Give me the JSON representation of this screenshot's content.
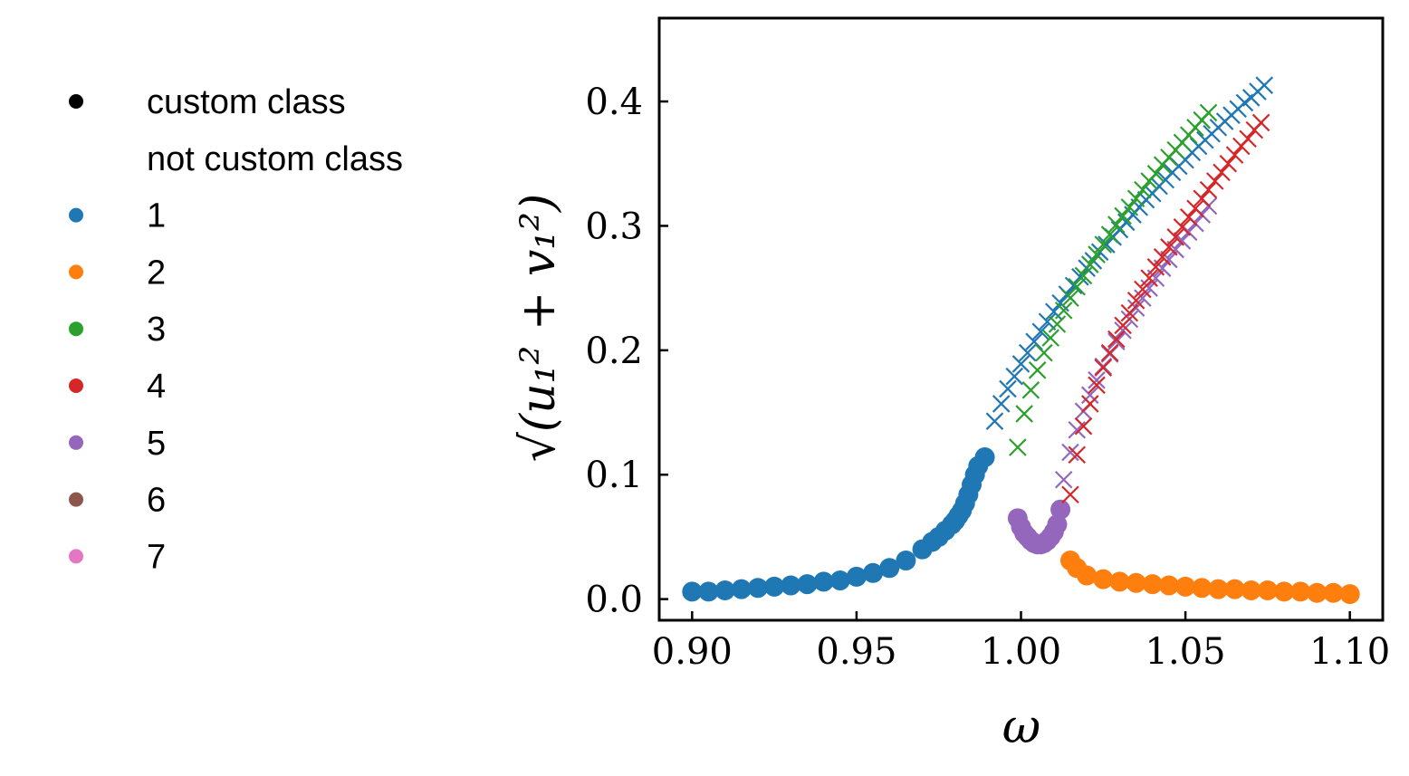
{
  "chart_data": {
    "type": "scatter",
    "title": "",
    "xlabel": "ω",
    "ylabel": "√(u₁² + v₁²)",
    "xlim": [
      0.89,
      1.11
    ],
    "ylim": [
      -0.017,
      0.467
    ],
    "xticks": [
      0.9,
      0.95,
      1.0,
      1.05,
      1.1
    ],
    "xtick_labels": [
      "0.90",
      "0.95",
      "1.00",
      "1.05",
      "1.10"
    ],
    "yticks": [
      0.0,
      0.1,
      0.2,
      0.3,
      0.4
    ],
    "ytick_labels": [
      "0.0",
      "0.1",
      "0.2",
      "0.3",
      "0.4"
    ],
    "grid": false,
    "legend_placement": "left-outside",
    "legend": [
      {
        "label": "custom class",
        "color": "#000000",
        "marker": "dot"
      },
      {
        "label": "not custom class",
        "color": "",
        "marker": "none"
      },
      {
        "label": "1",
        "color": "#1f77b4",
        "marker": "dot"
      },
      {
        "label": "2",
        "color": "#ff7f0e",
        "marker": "dot"
      },
      {
        "label": "3",
        "color": "#2ca02c",
        "marker": "dot"
      },
      {
        "label": "4",
        "color": "#d62728",
        "marker": "dot"
      },
      {
        "label": "5",
        "color": "#9467bd",
        "marker": "dot"
      },
      {
        "label": "6",
        "color": "#8c564b",
        "marker": "dot"
      },
      {
        "label": "7",
        "color": "#e377c2",
        "marker": "dot"
      }
    ],
    "series": [
      {
        "name": "1",
        "marker": "dot",
        "color": "#1f77b4",
        "x": [
          0.9,
          0.905,
          0.91,
          0.915,
          0.92,
          0.925,
          0.93,
          0.935,
          0.94,
          0.945,
          0.95,
          0.955,
          0.96,
          0.965,
          0.97,
          0.973,
          0.975,
          0.977,
          0.979,
          0.98,
          0.981,
          0.982,
          0.983,
          0.984,
          0.985,
          0.986,
          0.987,
          0.989
        ],
        "y": [
          0.006,
          0.006,
          0.007,
          0.008,
          0.009,
          0.01,
          0.011,
          0.012,
          0.014,
          0.015,
          0.018,
          0.021,
          0.025,
          0.031,
          0.04,
          0.046,
          0.05,
          0.055,
          0.06,
          0.063,
          0.067,
          0.071,
          0.077,
          0.084,
          0.092,
          0.1,
          0.107,
          0.114
        ]
      },
      {
        "name": "2",
        "marker": "dot",
        "color": "#ff7f0e",
        "x": [
          1.015,
          1.017,
          1.02,
          1.025,
          1.03,
          1.035,
          1.04,
          1.045,
          1.05,
          1.055,
          1.06,
          1.065,
          1.07,
          1.075,
          1.08,
          1.085,
          1.09,
          1.095,
          1.1
        ],
        "y": [
          0.031,
          0.025,
          0.019,
          0.016,
          0.014,
          0.013,
          0.012,
          0.011,
          0.01,
          0.009,
          0.008,
          0.008,
          0.007,
          0.007,
          0.006,
          0.006,
          0.005,
          0.005,
          0.004
        ]
      },
      {
        "name": "5",
        "marker": "dot",
        "color": "#9467bd",
        "x": [
          0.999,
          1.0,
          1.001,
          1.002,
          1.003,
          1.004,
          1.005,
          1.006,
          1.007,
          1.008,
          1.009,
          1.01,
          1.011,
          1.012
        ],
        "y": [
          0.065,
          0.058,
          0.053,
          0.05,
          0.047,
          0.045,
          0.044,
          0.044,
          0.045,
          0.047,
          0.05,
          0.054,
          0.06,
          0.072
        ]
      },
      {
        "name": "1",
        "marker": "x",
        "color": "#1f77b4",
        "x": [
          0.992,
          0.994,
          0.996,
          0.998,
          1.0,
          1.002,
          1.004,
          1.006,
          1.008,
          1.01,
          1.012,
          1.014,
          1.016,
          1.018,
          1.02,
          1.022,
          1.024,
          1.026,
          1.028,
          1.03,
          1.032,
          1.034,
          1.036,
          1.038,
          1.04,
          1.042,
          1.044,
          1.046,
          1.048,
          1.05,
          1.052,
          1.054,
          1.056,
          1.058,
          1.06,
          1.062,
          1.064,
          1.066,
          1.068,
          1.07,
          1.072,
          1.074
        ],
        "y": [
          0.143,
          0.157,
          0.169,
          0.179,
          0.189,
          0.198,
          0.207,
          0.215,
          0.223,
          0.231,
          0.238,
          0.245,
          0.252,
          0.259,
          0.266,
          0.272,
          0.279,
          0.285,
          0.291,
          0.297,
          0.303,
          0.309,
          0.315,
          0.321,
          0.326,
          0.332,
          0.337,
          0.343,
          0.348,
          0.353,
          0.359,
          0.364,
          0.369,
          0.374,
          0.379,
          0.384,
          0.389,
          0.394,
          0.399,
          0.403,
          0.408,
          0.413
        ]
      },
      {
        "name": "3",
        "marker": "x",
        "color": "#2ca02c",
        "x": [
          0.999,
          1.001,
          1.003,
          1.005,
          1.007,
          1.009,
          1.011,
          1.013,
          1.015,
          1.017,
          1.019,
          1.021,
          1.023,
          1.025,
          1.027,
          1.029,
          1.031,
          1.033,
          1.035,
          1.037,
          1.039,
          1.041,
          1.043,
          1.045,
          1.047,
          1.049,
          1.051,
          1.053,
          1.055,
          1.057
        ],
        "y": [
          0.122,
          0.149,
          0.168,
          0.184,
          0.198,
          0.21,
          0.221,
          0.232,
          0.242,
          0.251,
          0.26,
          0.269,
          0.277,
          0.285,
          0.293,
          0.301,
          0.308,
          0.315,
          0.322,
          0.329,
          0.336,
          0.342,
          0.349,
          0.355,
          0.361,
          0.367,
          0.373,
          0.379,
          0.385,
          0.391
        ]
      },
      {
        "name": "5",
        "marker": "x",
        "color": "#9467bd",
        "x": [
          1.013,
          1.015,
          1.017,
          1.019,
          1.021,
          1.023,
          1.025,
          1.027,
          1.029,
          1.031,
          1.033,
          1.035,
          1.037,
          1.039,
          1.041,
          1.043,
          1.045,
          1.047,
          1.049,
          1.051,
          1.053,
          1.055,
          1.057
        ],
        "y": [
          0.096,
          0.118,
          0.136,
          0.151,
          0.164,
          0.176,
          0.187,
          0.197,
          0.207,
          0.216,
          0.225,
          0.234,
          0.242,
          0.25,
          0.258,
          0.266,
          0.273,
          0.281,
          0.288,
          0.295,
          0.302,
          0.309,
          0.316
        ]
      },
      {
        "name": "4",
        "marker": "x",
        "color": "#d62728",
        "x": [
          1.015,
          1.017,
          1.019,
          1.021,
          1.023,
          1.025,
          1.027,
          1.029,
          1.031,
          1.033,
          1.035,
          1.037,
          1.039,
          1.041,
          1.043,
          1.045,
          1.047,
          1.049,
          1.051,
          1.053,
          1.055,
          1.057,
          1.059,
          1.061,
          1.063,
          1.065,
          1.067,
          1.069,
          1.071,
          1.073
        ],
        "y": [
          0.084,
          0.116,
          0.139,
          0.157,
          0.172,
          0.186,
          0.198,
          0.209,
          0.22,
          0.23,
          0.24,
          0.249,
          0.258,
          0.267,
          0.275,
          0.283,
          0.291,
          0.299,
          0.307,
          0.314,
          0.322,
          0.329,
          0.336,
          0.343,
          0.35,
          0.357,
          0.364,
          0.37,
          0.377,
          0.383
        ]
      }
    ]
  }
}
